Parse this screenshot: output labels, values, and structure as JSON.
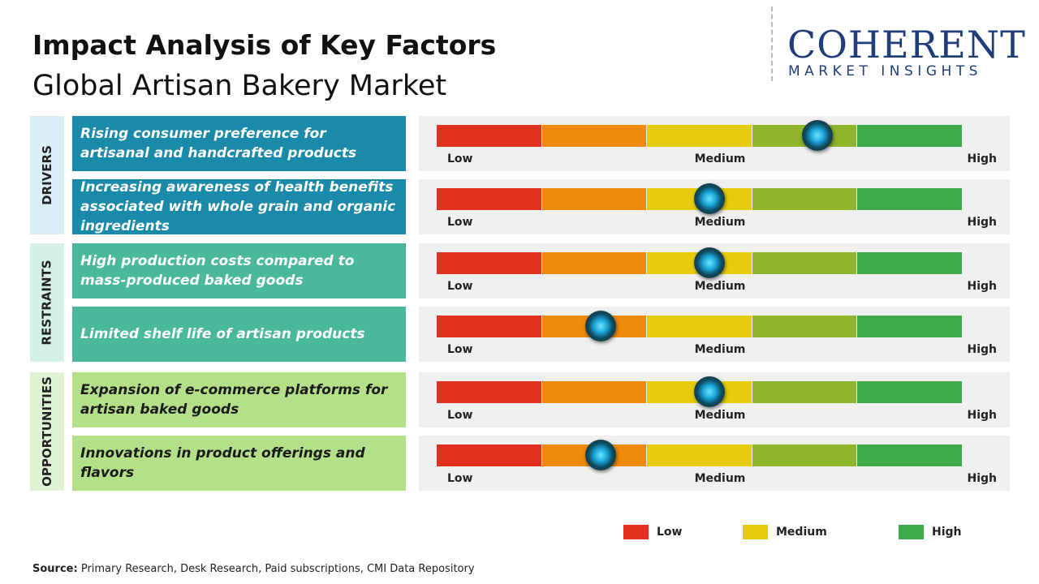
{
  "header": {
    "title": "Impact Analysis of Key Factors",
    "subtitle": "Global Artisan Bakery Market"
  },
  "logo": {
    "name": "COHERENT",
    "tagline": "MARKET INSIGHTS"
  },
  "segment_colors": [
    "#e0301e",
    "#ef8a0a",
    "#e6cc0c",
    "#8fb52a",
    "#3faa48"
  ],
  "groups": [
    {
      "name": "DRIVERS",
      "side_color": "#dbeef6",
      "box_color": "#1a8aab",
      "text_color": "#ffffff",
      "factors": [
        {
          "text": "Rising consumer preference for artisanal and handcrafted products",
          "impact": 3.62
        },
        {
          "text": "Increasing awareness of health benefits associated with whole grain and organic ingredients",
          "impact": 2.59
        }
      ]
    },
    {
      "name": "RESTRAINTS",
      "side_color": "#d5efe9",
      "box_color": "#4ab89a",
      "text_color": "#ffffff",
      "factors": [
        {
          "text": "High production costs compared to mass-produced baked goods",
          "impact": 2.59
        },
        {
          "text": "Limited shelf life of artisan products",
          "impact": 1.56
        }
      ]
    },
    {
      "name": "OPPORTUNITIES",
      "side_color": "#dff2d4",
      "box_color": "#b5e08a",
      "text_color": "#1a1a1a",
      "factors": [
        {
          "text": "Expansion of e-commerce platforms for artisan baked goods",
          "impact": 2.59
        },
        {
          "text": "Innovations in product offerings and flavors",
          "impact": 1.56
        }
      ]
    }
  ],
  "scale_labels": {
    "low": "Low",
    "medium": "Medium",
    "high": "High"
  },
  "legend": [
    {
      "label": "Low",
      "color": "#e0301e"
    },
    {
      "label": "Medium",
      "color": "#e6cc0c"
    },
    {
      "label": "High",
      "color": "#3faa48"
    }
  ],
  "source": {
    "label": "Source:",
    "text": "Primary Research, Desk Research, Paid subscriptions, CMI Data Repository"
  }
}
